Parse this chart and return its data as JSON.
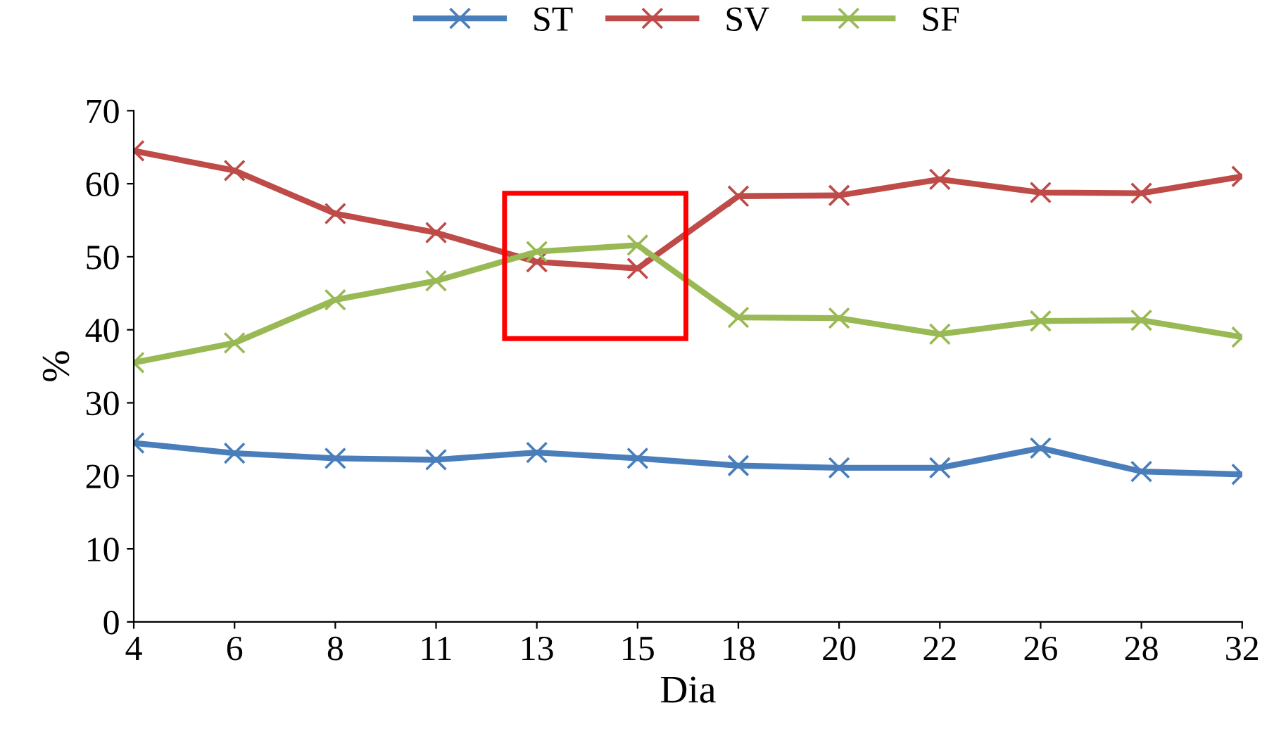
{
  "chart_data": {
    "type": "line",
    "xlabel": "Dia",
    "ylabel": "%",
    "categories": [
      "4",
      "6",
      "8",
      "11",
      "13",
      "15",
      "18",
      "20",
      "22",
      "26",
      "28",
      "32"
    ],
    "series": [
      {
        "name": "ST",
        "color": "#4a7ebb",
        "values": [
          24.5,
          23.1,
          22.4,
          22.2,
          23.2,
          22.4,
          21.4,
          21.1,
          21.1,
          23.8,
          20.6,
          20.2
        ]
      },
      {
        "name": "SV",
        "color": "#be4b48",
        "values": [
          64.5,
          61.8,
          55.9,
          53.3,
          49.3,
          48.4,
          58.3,
          58.4,
          60.6,
          58.8,
          58.7,
          61.0
        ]
      },
      {
        "name": "SF",
        "color": "#98b954",
        "values": [
          35.5,
          38.2,
          44.1,
          46.7,
          50.7,
          51.6,
          41.7,
          41.6,
          39.4,
          41.2,
          41.3,
          39.0
        ]
      }
    ],
    "ylim": [
      0,
      70
    ],
    "yticks": [
      0,
      10,
      20,
      30,
      40,
      50,
      60,
      70
    ],
    "grid": false,
    "legend": "top",
    "marker": "cross",
    "line_style": "solid"
  }
}
